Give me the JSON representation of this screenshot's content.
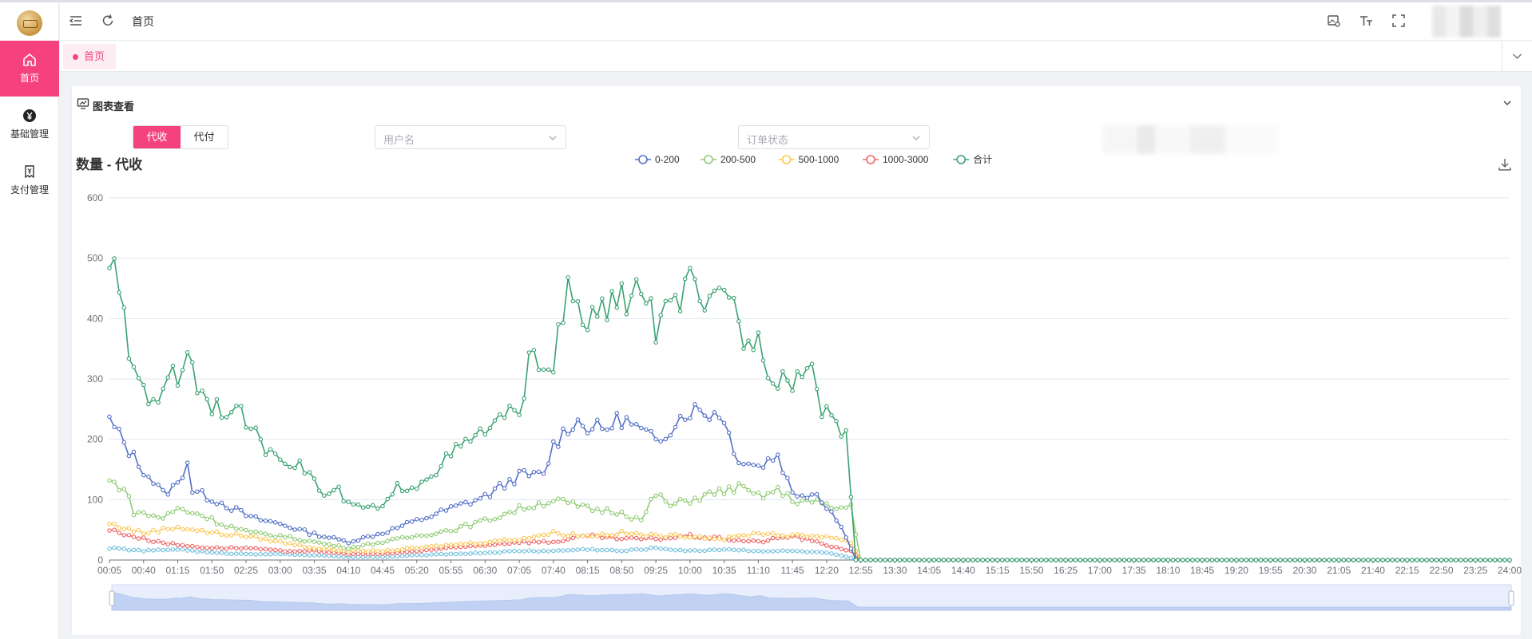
{
  "sidebar": {
    "items": [
      {
        "label": "首页",
        "icon": "home-icon",
        "active": true
      },
      {
        "label": "基础管理",
        "icon": "yen-circle-icon",
        "active": false
      },
      {
        "label": "支付管理",
        "icon": "payment-doc-icon",
        "active": false
      }
    ]
  },
  "header": {
    "breadcrumb": "首页"
  },
  "tags": {
    "items": [
      "首页"
    ]
  },
  "card": {
    "title": "图表查看",
    "segment": {
      "options": [
        "代收",
        "代付"
      ],
      "selected": 0
    },
    "filters": {
      "username_placeholder": "用户名",
      "status_placeholder": "订单状态"
    }
  },
  "chart_data": {
    "type": "line",
    "title": "数量 - 代收",
    "ylim": [
      0,
      600
    ],
    "yticks": [
      0,
      100,
      200,
      300,
      400,
      500,
      600
    ],
    "x_range": [
      "00:05",
      "24:00"
    ],
    "x_step_minutes": 5,
    "xtick_labels": [
      "00:05",
      "00:40",
      "01:15",
      "01:50",
      "02:25",
      "03:00",
      "03:35",
      "04:10",
      "04:45",
      "05:20",
      "05:55",
      "06:30",
      "07:05",
      "07:40",
      "08:15",
      "08:50",
      "09:25",
      "10:00",
      "10:35",
      "11:10",
      "11:45",
      "12:20",
      "12:55",
      "13:30",
      "14:05",
      "14:40",
      "15:15",
      "15:50",
      "16:25",
      "17:00",
      "17:35",
      "18:10",
      "18:45",
      "19:20",
      "19:55",
      "20:30",
      "21:05",
      "21:40",
      "22:15",
      "22:50",
      "23:25",
      "24:00"
    ],
    "legend_position": "top-center",
    "grid": true,
    "data_zoom": true,
    "series": [
      {
        "name": "0-200",
        "color": "#5470c6",
        "keypoints": [
          [
            "00:05",
            230
          ],
          [
            "00:30",
            170
          ],
          [
            "00:45",
            140
          ],
          [
            "01:00",
            110
          ],
          [
            "01:15",
            125
          ],
          [
            "01:25",
            165
          ],
          [
            "01:30",
            115
          ],
          [
            "02:00",
            95
          ],
          [
            "02:30",
            70
          ],
          [
            "03:00",
            60
          ],
          [
            "03:30",
            45
          ],
          [
            "04:10",
            30
          ],
          [
            "04:45",
            45
          ],
          [
            "05:20",
            65
          ],
          [
            "05:55",
            85
          ],
          [
            "06:30",
            105
          ],
          [
            "07:05",
            140
          ],
          [
            "07:30",
            140
          ],
          [
            "07:40",
            190
          ],
          [
            "08:00",
            230
          ],
          [
            "08:30",
            215
          ],
          [
            "08:50",
            235
          ],
          [
            "09:25",
            195
          ],
          [
            "09:45",
            230
          ],
          [
            "10:00",
            250
          ],
          [
            "10:35",
            240
          ],
          [
            "10:45",
            175
          ],
          [
            "11:10",
            155
          ],
          [
            "11:30",
            175
          ],
          [
            "11:45",
            110
          ],
          [
            "12:10",
            110
          ],
          [
            "12:25",
            80
          ],
          [
            "12:40",
            40
          ],
          [
            "12:50",
            0
          ],
          [
            "24:00",
            0
          ]
        ]
      },
      {
        "name": "200-500",
        "color": "#91cc75",
        "keypoints": [
          [
            "00:05",
            130
          ],
          [
            "00:20",
            120
          ],
          [
            "00:30",
            80
          ],
          [
            "01:00",
            70
          ],
          [
            "01:15",
            85
          ],
          [
            "01:40",
            75
          ],
          [
            "02:00",
            60
          ],
          [
            "02:30",
            45
          ],
          [
            "03:00",
            40
          ],
          [
            "03:35",
            30
          ],
          [
            "04:10",
            20
          ],
          [
            "04:45",
            30
          ],
          [
            "05:20",
            40
          ],
          [
            "05:55",
            50
          ],
          [
            "06:30",
            65
          ],
          [
            "07:05",
            85
          ],
          [
            "07:30",
            95
          ],
          [
            "07:40",
            100
          ],
          [
            "08:15",
            85
          ],
          [
            "08:50",
            80
          ],
          [
            "09:10",
            65
          ],
          [
            "09:25",
            110
          ],
          [
            "09:40",
            90
          ],
          [
            "10:00",
            100
          ],
          [
            "10:35",
            115
          ],
          [
            "10:50",
            120
          ],
          [
            "11:10",
            105
          ],
          [
            "11:30",
            115
          ],
          [
            "11:45",
            100
          ],
          [
            "12:10",
            95
          ],
          [
            "12:30",
            85
          ],
          [
            "12:45",
            90
          ],
          [
            "12:55",
            0
          ],
          [
            "24:00",
            0
          ]
        ]
      },
      {
        "name": "500-1000",
        "color": "#fac858",
        "keypoints": [
          [
            "00:05",
            60
          ],
          [
            "00:40",
            45
          ],
          [
            "01:15",
            55
          ],
          [
            "01:50",
            45
          ],
          [
            "02:25",
            40
          ],
          [
            "03:00",
            30
          ],
          [
            "03:35",
            20
          ],
          [
            "04:10",
            15
          ],
          [
            "04:45",
            15
          ],
          [
            "05:20",
            20
          ],
          [
            "05:55",
            25
          ],
          [
            "06:30",
            30
          ],
          [
            "07:05",
            35
          ],
          [
            "07:40",
            45
          ],
          [
            "08:15",
            40
          ],
          [
            "08:50",
            45
          ],
          [
            "09:25",
            40
          ],
          [
            "10:00",
            40
          ],
          [
            "10:35",
            35
          ],
          [
            "11:10",
            45
          ],
          [
            "11:45",
            40
          ],
          [
            "12:20",
            40
          ],
          [
            "12:45",
            30
          ],
          [
            "12:55",
            0
          ],
          [
            "24:00",
            0
          ]
        ]
      },
      {
        "name": "1000-3000",
        "color": "#ee6666",
        "keypoints": [
          [
            "00:05",
            50
          ],
          [
            "00:40",
            35
          ],
          [
            "01:15",
            25
          ],
          [
            "01:50",
            20
          ],
          [
            "02:25",
            20
          ],
          [
            "03:00",
            15
          ],
          [
            "03:35",
            15
          ],
          [
            "04:10",
            10
          ],
          [
            "04:45",
            10
          ],
          [
            "05:20",
            15
          ],
          [
            "05:55",
            20
          ],
          [
            "06:30",
            25
          ],
          [
            "07:05",
            30
          ],
          [
            "07:40",
            30
          ],
          [
            "08:15",
            40
          ],
          [
            "08:50",
            35
          ],
          [
            "09:25",
            35
          ],
          [
            "10:00",
            40
          ],
          [
            "10:35",
            35
          ],
          [
            "11:10",
            30
          ],
          [
            "11:45",
            40
          ],
          [
            "12:20",
            25
          ],
          [
            "12:45",
            15
          ],
          [
            "12:55",
            0
          ],
          [
            "24:00",
            0
          ]
        ]
      },
      {
        "name": "合计",
        "color": "#3ba272",
        "keypoints": [
          [
            "00:05",
            505
          ],
          [
            "00:15",
            440
          ],
          [
            "00:25",
            345
          ],
          [
            "00:35",
            300
          ],
          [
            "00:45",
            275
          ],
          [
            "01:00",
            270
          ],
          [
            "01:10",
            315
          ],
          [
            "01:15",
            300
          ],
          [
            "01:25",
            355
          ],
          [
            "01:35",
            290
          ],
          [
            "01:50",
            260
          ],
          [
            "02:25",
            235
          ],
          [
            "02:40",
            190
          ],
          [
            "03:00",
            175
          ],
          [
            "03:30",
            145
          ],
          [
            "03:45",
            105
          ],
          [
            "04:00",
            115
          ],
          [
            "04:10",
            90
          ],
          [
            "04:45",
            85
          ],
          [
            "05:00",
            120
          ],
          [
            "05:20",
            125
          ],
          [
            "05:40",
            150
          ],
          [
            "05:55",
            175
          ],
          [
            "06:30",
            215
          ],
          [
            "07:05",
            250
          ],
          [
            "07:15",
            325
          ],
          [
            "07:40",
            330
          ],
          [
            "07:55",
            440
          ],
          [
            "08:15",
            390
          ],
          [
            "08:30",
            415
          ],
          [
            "08:50",
            430
          ],
          [
            "09:10",
            455
          ],
          [
            "09:25",
            385
          ],
          [
            "09:40",
            415
          ],
          [
            "10:00",
            455
          ],
          [
            "10:15",
            400
          ],
          [
            "10:35",
            465
          ],
          [
            "10:45",
            420
          ],
          [
            "11:00",
            350
          ],
          [
            "11:10",
            395
          ],
          [
            "11:20",
            310
          ],
          [
            "11:30",
            305
          ],
          [
            "11:45",
            300
          ],
          [
            "12:05",
            320
          ],
          [
            "12:15",
            255
          ],
          [
            "12:25",
            225
          ],
          [
            "12:40",
            215
          ],
          [
            "12:50",
            0
          ],
          [
            "24:00",
            0
          ]
        ]
      },
      {
        "name": "",
        "color": "#73c0de",
        "keypoints": [
          [
            "00:05",
            20
          ],
          [
            "00:40",
            15
          ],
          [
            "01:15",
            18
          ],
          [
            "01:50",
            12
          ],
          [
            "02:25",
            10
          ],
          [
            "03:00",
            10
          ],
          [
            "03:35",
            8
          ],
          [
            "04:10",
            5
          ],
          [
            "04:45",
            5
          ],
          [
            "05:20",
            8
          ],
          [
            "05:55",
            10
          ],
          [
            "06:30",
            12
          ],
          [
            "07:05",
            15
          ],
          [
            "07:40",
            15
          ],
          [
            "08:15",
            18
          ],
          [
            "08:50",
            15
          ],
          [
            "09:25",
            20
          ],
          [
            "10:00",
            15
          ],
          [
            "10:35",
            18
          ],
          [
            "11:10",
            15
          ],
          [
            "11:45",
            15
          ],
          [
            "12:20",
            12
          ],
          [
            "12:55",
            0
          ],
          [
            "24:00",
            0
          ]
        ]
      }
    ]
  }
}
